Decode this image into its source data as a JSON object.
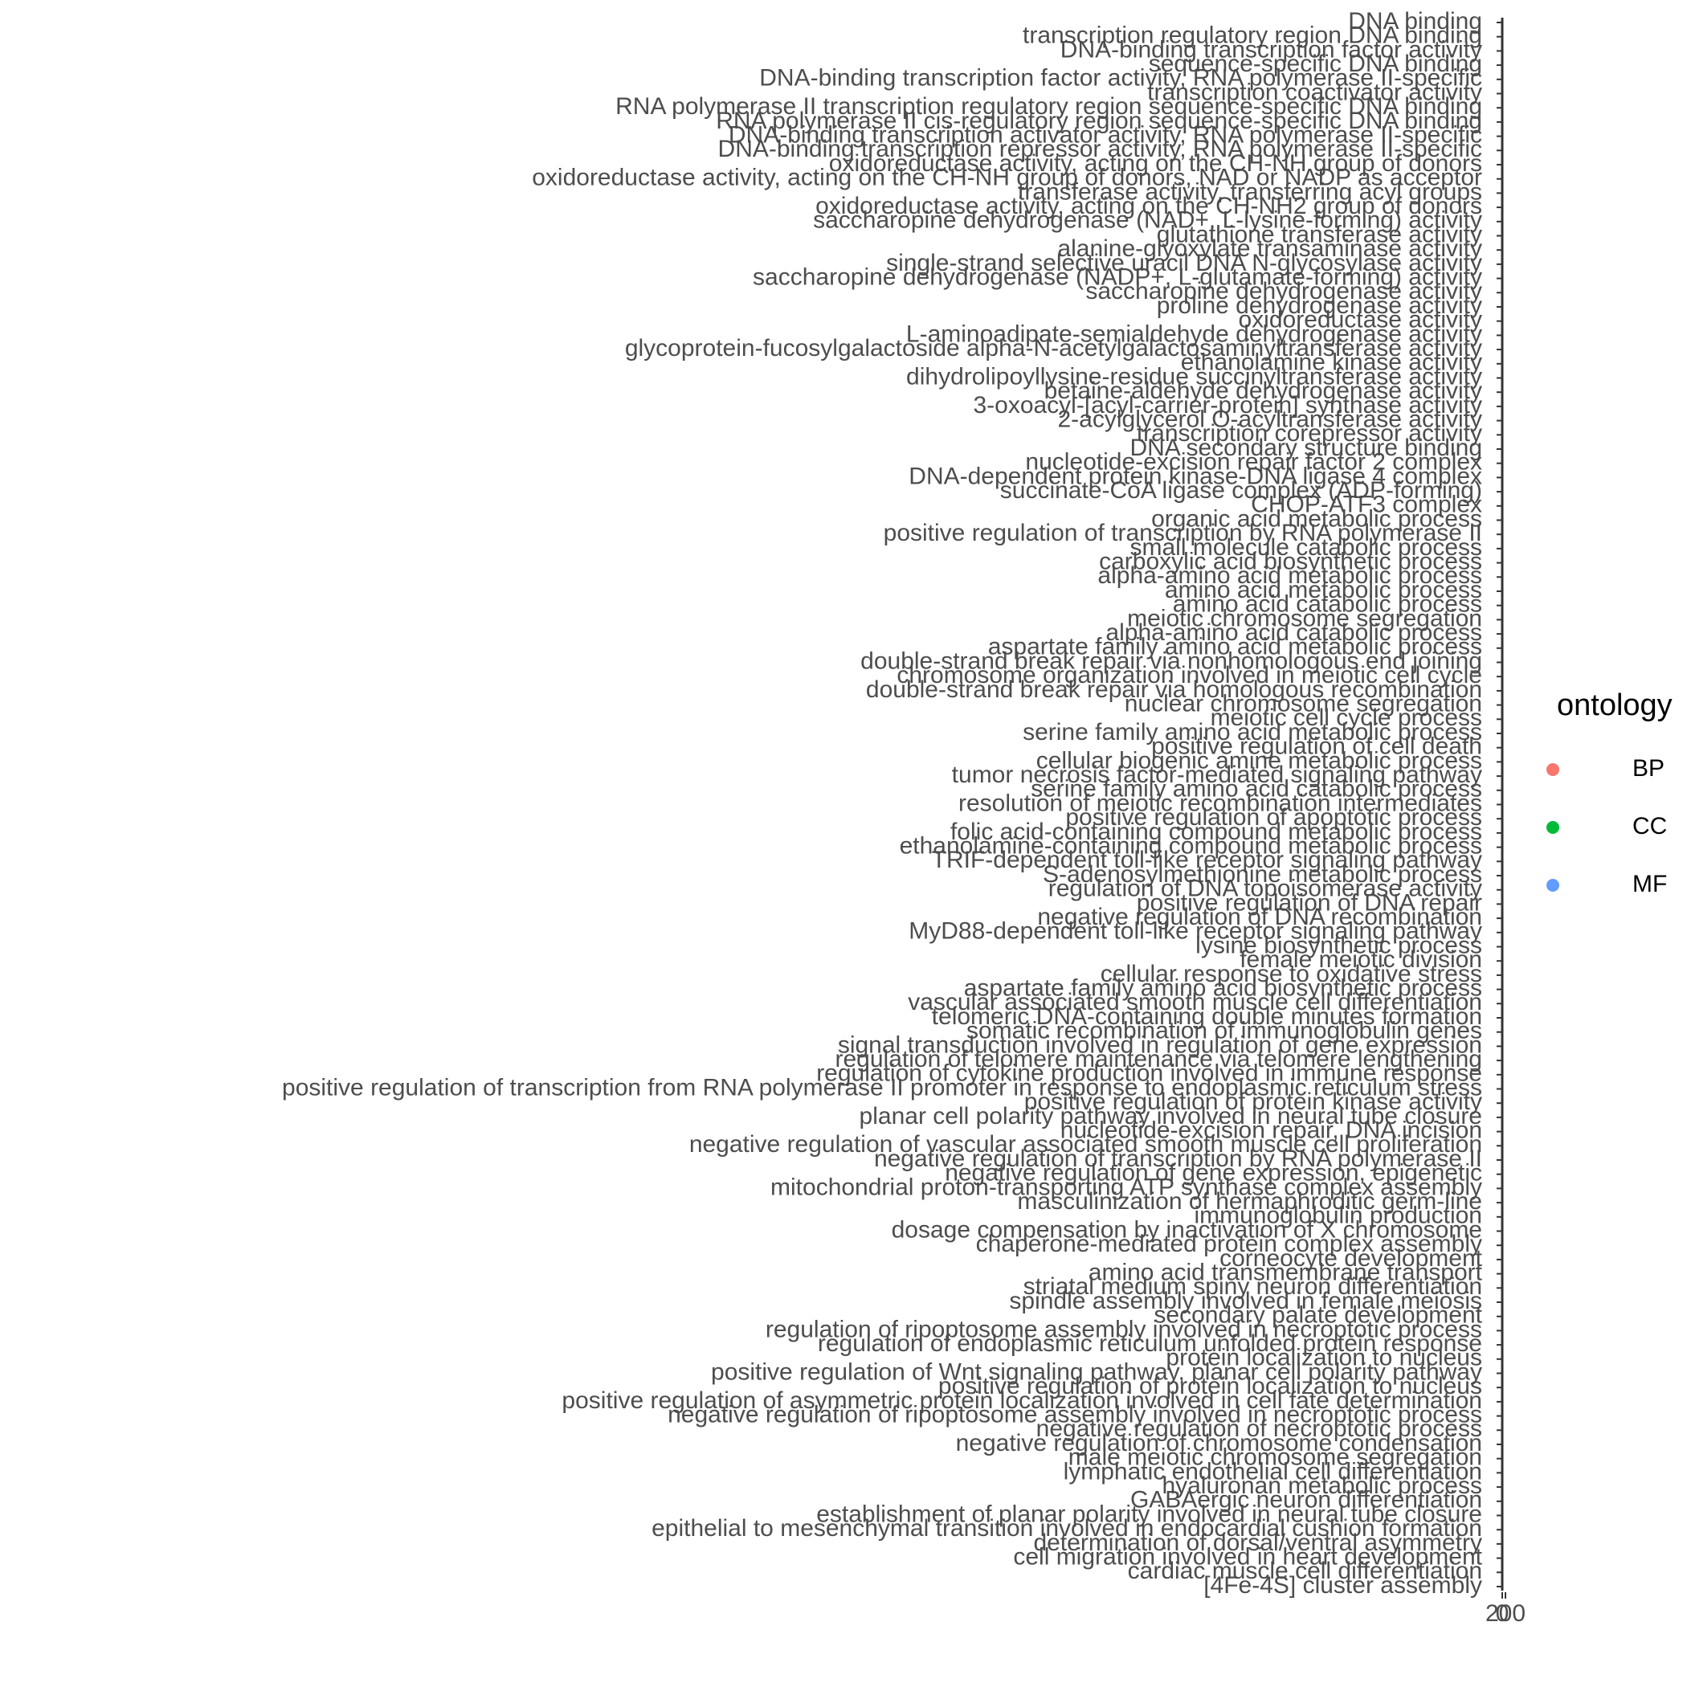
{
  "chart_data": {
    "type": "scatter",
    "xlim": [
      0,
      200
    ],
    "x_tick_labels": [
      "0",
      "200"
    ],
    "y_categories": [
      "DNA binding",
      "transcription regulatory region DNA binding",
      "DNA-binding transcription factor activity",
      "sequence-specific DNA binding",
      "DNA-binding transcription factor activity, RNA polymerase II-specific",
      "transcription coactivator activity",
      "RNA polymerase II transcription regulatory region sequence-specific DNA binding",
      "RNA polymerase II cis-regulatory region sequence-specific DNA binding",
      "DNA-binding transcription activator activity, RNA polymerase II-specific",
      "DNA-binding transcription repressor activity, RNA polymerase II-specific",
      "oxidoreductase activity, acting on the CH-NH group of donors",
      "oxidoreductase activity, acting on the CH-NH group of donors, NAD or NADP as acceptor",
      "transferase activity, transferring acyl groups",
      "oxidoreductase activity, acting on the CH-NH2 group of donors",
      "saccharopine dehydrogenase (NAD+, L-lysine-forming) activity",
      "glutathione transferase activity",
      "alanine-glyoxylate transaminase activity",
      "single-strand selective uracil DNA N-glycosylase activity",
      "saccharopine dehydrogenase (NADP+, L-glutamate-forming) activity",
      "saccharopine dehydrogenase activity",
      "proline dehydrogenase activity",
      "oxidoreductase activity",
      "L-aminoadipate-semialdehyde dehydrogenase activity",
      "glycoprotein-fucosylgalactoside alpha-N-acetylgalactosaminyltransferase activity",
      "ethanolamine kinase activity",
      "dihydrolipoyllysine-residue succinyltransferase activity",
      "betaine-aldehyde dehydrogenase activity",
      "3-oxoacyl-[acyl-carrier-protein] synthase activity",
      "2-acylglycerol O-acyltransferase activity",
      "transcription corepressor activity",
      "DNA secondary structure binding",
      "nucleotide-excision repair factor 2 complex",
      "DNA-dependent protein kinase-DNA ligase 4 complex",
      "succinate-CoA ligase complex (ADP-forming)",
      "CHOP-ATF3 complex",
      "organic acid metabolic process",
      "positive regulation of transcription by RNA polymerase II",
      "small molecule catabolic process",
      "carboxylic acid biosynthetic process",
      "alpha-amino acid metabolic process",
      "amino acid metabolic process",
      "amino acid catabolic process",
      "meiotic chromosome segregation",
      "alpha-amino acid catabolic process",
      "aspartate family amino acid metabolic process",
      "double-strand break repair via nonhomologous end joining",
      "chromosome organization involved in meiotic cell cycle",
      "double-strand break repair via homologous recombination",
      "nuclear chromosome segregation",
      "meiotic cell cycle process",
      "serine family amino acid metabolic process",
      "positive regulation of cell death",
      "cellular biogenic amine metabolic process",
      "tumor necrosis factor-mediated signaling pathway",
      "serine family amino acid catabolic process",
      "resolution of meiotic recombination intermediates",
      "positive regulation of apoptotic process",
      "folic acid-containing compound metabolic process",
      "ethanolamine-containing compound metabolic process",
      "TRIF-dependent toll-like receptor signaling pathway",
      "S-adenosylmethionine metabolic process",
      "regulation of DNA topoisomerase activity",
      "positive regulation of DNA repair",
      "negative regulation of DNA recombination",
      "MyD88-dependent toll-like receptor signaling pathway",
      "lysine biosynthetic process",
      "female meiotic division",
      "cellular response to oxidative stress",
      "aspartate family amino acid biosynthetic process",
      "vascular associated smooth muscle cell differentiation",
      "telomeric DNA-containing double minutes formation",
      "somatic recombination of immunoglobulin genes",
      "signal transduction involved in regulation of gene expression",
      "regulation of telomere maintenance via telomere lengthening",
      "regulation of cytokine production involved in immune response",
      "positive regulation of transcription from RNA polymerase II promoter in response to endoplasmic reticulum stress",
      "positive regulation of protein kinase activity",
      "planar cell polarity pathway involved in neural tube closure",
      "nucleotide-excision repair, DNA incision",
      "negative regulation of vascular associated smooth muscle cell proliferation",
      "negative regulation of transcription by RNA polymerase II",
      "negative regulation of gene expression, epigenetic",
      "mitochondrial proton-transporting ATP synthase complex assembly",
      "masculinization of hermaphroditic germ-line",
      "immunoglobulin production",
      "dosage compensation by inactivation of X chromosome",
      "chaperone-mediated protein complex assembly",
      "corneocyte development",
      "amino acid transmembrane transport",
      "striatal medium spiny neuron differentiation",
      "spindle assembly involved in female meiosis",
      "secondary palate development",
      "regulation of ripoptosome assembly involved in necroptotic process",
      "regulation of endoplasmic reticulum unfolded protein response",
      "protein localization to nucleus",
      "positive regulation of Wnt signaling pathway, planar cell polarity pathway",
      "positive regulation of protein localization to nucleus",
      "positive regulation of asymmetric protein localization involved in cell fate determination",
      "negative regulation of ripoptosome assembly involved in necroptotic process",
      "negative regulation of necroptotic process",
      "negative regulation of chromosome condensation",
      "male meiotic chromosome segregation",
      "lymphatic endothelial cell differentiation",
      "hyaluronan metabolic process",
      "GABAergic neuron differentiation",
      "establishment of planar polarity involved in neural tube closure",
      "epithelial to mesenchymal transition involved in endocardial cushion formation",
      "determination of dorsal/ventral asymmetry",
      "cell migration involved in heart development",
      "cardiac muscle cell differentiation",
      "[4Fe-4S] cluster assembly"
    ],
    "series": [
      {
        "name": "BP",
        "color": "#F8766D"
      },
      {
        "name": "CC",
        "color": "#00BA38"
      },
      {
        "name": "MF",
        "color": "#619CFF"
      }
    ],
    "legend": {
      "title": "ontology",
      "placement": "right"
    }
  }
}
